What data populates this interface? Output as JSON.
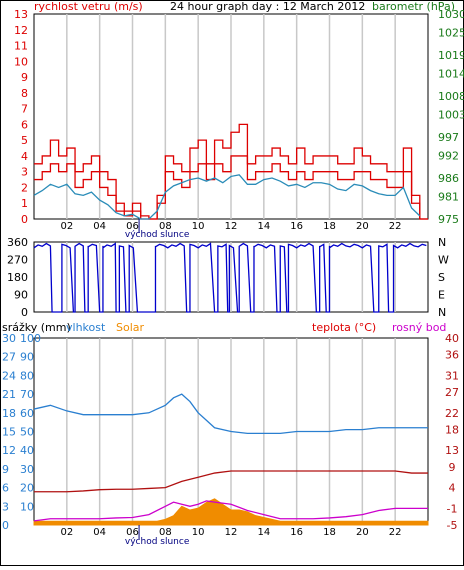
{
  "title": "24 hour graph day : 12 March 2012",
  "colors": {
    "wind": "#dd0000",
    "gust": "#dd0000",
    "windAvg": "#2a8cb8",
    "pressure": "#1a7a1a",
    "direction": "#0000cc",
    "humidity": "#2a7fd0",
    "solar": "#f08c00",
    "temperature": "#b01010",
    "dewpoint": "#cc00cc",
    "sunrise": "#000080",
    "grid": "#c8c8c8"
  },
  "chart_data": [
    {
      "type": "line",
      "left_label": "rychlost vetru (m/s)",
      "right_label": "barometr (hPa)",
      "title": "24 hour graph day : 12 March 2012",
      "xticks": [
        "02",
        "04",
        "06",
        "08",
        "10",
        "12",
        "14",
        "16",
        "18",
        "20",
        "22"
      ],
      "sunrise_label": "východ slunce",
      "yticks_left": [
        "0",
        "1",
        "2",
        "3",
        "4",
        "5",
        "6",
        "7",
        "8",
        "9",
        "10",
        "11",
        "12",
        "13"
      ],
      "yticks_right": [
        "975",
        "981",
        "986",
        "992",
        "997",
        "1003",
        "1008",
        "1014",
        "1019",
        "1025",
        "1030"
      ],
      "ylim_left": [
        0,
        13
      ],
      "ylim_right": [
        975,
        1030
      ],
      "series": [
        {
          "name": "gust",
          "x": [
            0,
            0.5,
            1,
            1.5,
            2,
            2.5,
            3,
            3.5,
            4,
            4.5,
            5,
            5.5,
            6,
            6.5,
            7,
            7.5,
            8,
            8.5,
            9,
            9.5,
            10,
            10.5,
            11,
            11.5,
            12,
            12.5,
            13,
            13.5,
            14,
            14.5,
            15,
            15.5,
            16,
            16.5,
            17,
            17.5,
            18,
            18.5,
            19,
            19.5,
            20,
            20.5,
            21,
            21.5,
            22,
            22.5,
            23,
            23.5
          ],
          "values": [
            3.5,
            4,
            5,
            4,
            4.5,
            3,
            3.5,
            4,
            3,
            2.5,
            1,
            0.5,
            1,
            0.2,
            0,
            1.5,
            4,
            3.5,
            3,
            4.5,
            5,
            3.5,
            5,
            4.5,
            5.5,
            6,
            3.5,
            4,
            4,
            4.5,
            4,
            3.5,
            4.5,
            3.5,
            4,
            4,
            4,
            3.5,
            3.5,
            4.5,
            4,
            3.5,
            3.5,
            3,
            3,
            4.5,
            1.5,
            0
          ]
        },
        {
          "name": "wind",
          "x": [
            0,
            0.5,
            1,
            1.5,
            2,
            2.5,
            3,
            3.5,
            4,
            4.5,
            5,
            5.5,
            6,
            6.5,
            7,
            7.5,
            8,
            8.5,
            9,
            9.5,
            10,
            10.5,
            11,
            11.5,
            12,
            12.5,
            13,
            13.5,
            14,
            14.5,
            15,
            15.5,
            16,
            16.5,
            17,
            17.5,
            18,
            18.5,
            19,
            19.5,
            20,
            20.5,
            21,
            21.5,
            22,
            22.5,
            23,
            23.5
          ],
          "values": [
            2.5,
            3,
            3.5,
            3,
            3.5,
            2,
            2.5,
            3,
            2,
            1.5,
            0.5,
            0.2,
            0.5,
            0,
            0,
            1,
            3,
            2.5,
            2,
            3,
            3.5,
            2.5,
            3.5,
            3,
            4,
            4,
            2.5,
            3,
            3,
            3.5,
            3,
            2.5,
            3,
            2.5,
            3,
            3,
            3,
            2.5,
            2.5,
            3,
            3,
            2.5,
            2.5,
            2,
            2,
            3,
            1,
            0
          ]
        },
        {
          "name": "windAvg",
          "x": [
            0,
            0.5,
            1,
            1.5,
            2,
            2.5,
            3,
            3.5,
            4,
            4.5,
            5,
            5.5,
            6,
            6.5,
            7,
            7.5,
            8,
            8.5,
            9,
            9.5,
            10,
            10.5,
            11,
            11.5,
            12,
            12.5,
            13,
            13.5,
            14,
            14.5,
            15,
            15.5,
            16,
            16.5,
            17,
            17.5,
            18,
            18.5,
            19,
            19.5,
            20,
            20.5,
            21,
            21.5,
            22,
            22.5,
            23,
            23.5
          ],
          "values": [
            1.5,
            1.8,
            2.2,
            2.0,
            2.2,
            1.6,
            1.5,
            1.7,
            1.2,
            0.9,
            0.4,
            0.2,
            0.3,
            0,
            0,
            0.5,
            1.7,
            2.1,
            2.3,
            2.5,
            2.6,
            2.4,
            2.6,
            2.3,
            2.7,
            2.8,
            2.2,
            2.2,
            2.5,
            2.6,
            2.4,
            2.1,
            2.2,
            2.0,
            2.3,
            2.3,
            2.2,
            1.9,
            1.8,
            2.2,
            2.1,
            1.8,
            1.6,
            1.5,
            1.5,
            2.0,
            0.7,
            0.2
          ]
        },
        {
          "name": "pressure",
          "x": [
            0,
            1,
            2,
            3,
            4,
            5,
            6,
            7,
            8,
            8.2,
            9,
            10,
            11,
            12,
            13,
            14,
            15,
            16,
            17,
            18,
            19,
            20,
            21,
            22,
            23,
            24
          ],
          "values": [
            1022,
            1022,
            1022,
            1022,
            1022,
            1022,
            1022,
            1022,
            1021,
            1022,
            1022,
            1022,
            1022,
            1022,
            1022,
            1022,
            1022,
            1022,
            1022,
            1022,
            1023,
            1023,
            1023.5,
            1024,
            1024,
            1024
          ]
        }
      ]
    },
    {
      "type": "line",
      "name": "wind direction",
      "yticks_left": [
        "360",
        "270",
        "180",
        "90",
        "0"
      ],
      "yticks_right": [
        "N",
        "W",
        "S",
        "E",
        "N"
      ],
      "ylim": [
        0,
        360
      ],
      "series": [
        {
          "name": "direction",
          "segments": "mostly north/west (~330-350) with frequent drops to 0"
        }
      ]
    },
    {
      "type": "line",
      "labels_left": [
        "srážky (mm)",
        "vlhkost",
        "Solar"
      ],
      "labels_right": [
        "teplota (°C)",
        "rosný bod"
      ],
      "yticks_rain": [
        "0",
        "3",
        "6",
        "9",
        "12",
        "15",
        "18",
        "21",
        "24",
        "27",
        "30"
      ],
      "yticks_left": [
        "0",
        "10",
        "20",
        "30",
        "40",
        "50",
        "60",
        "70",
        "80",
        "90",
        "100"
      ],
      "yticks_solar": [
        "0",
        "10",
        "20",
        "30",
        "40",
        "50",
        "60",
        "70",
        "80",
        "90",
        "100"
      ],
      "yticks_right": [
        "-5",
        "-1",
        "4",
        "9",
        "13",
        "18",
        "22",
        "27",
        "31",
        "36",
        "40"
      ],
      "xticks": [
        "02",
        "04",
        "06",
        "08",
        "10",
        "12",
        "14",
        "16",
        "18",
        "20",
        "22"
      ],
      "sunrise_label": "východ slunce",
      "series": [
        {
          "name": "humidity",
          "x": [
            0,
            1,
            2,
            3,
            4,
            5,
            6,
            7,
            8,
            8.5,
            9,
            9.5,
            10,
            10.5,
            11,
            12,
            13,
            14,
            15,
            16,
            17,
            18,
            19,
            20,
            21,
            22,
            23,
            24
          ],
          "values": [
            62,
            64,
            61,
            59,
            59,
            59,
            59,
            60,
            64,
            68,
            70,
            66,
            60,
            56,
            52,
            50,
            49,
            49,
            49,
            50,
            50,
            50,
            51,
            51,
            52,
            52,
            52,
            52
          ]
        },
        {
          "name": "temperature",
          "x": [
            0,
            1,
            2,
            3,
            4,
            5,
            6,
            7,
            8,
            9,
            10,
            11,
            12,
            13,
            14,
            15,
            16,
            17,
            18,
            19,
            20,
            21,
            22,
            23,
            24
          ],
          "values": [
            3,
            3,
            3,
            3.2,
            3.5,
            3.6,
            3.6,
            3.8,
            4,
            5.5,
            6.5,
            7.5,
            8,
            8,
            8,
            8,
            8,
            8,
            8,
            8,
            8,
            8,
            8,
            7.5,
            7.5
          ]
        },
        {
          "name": "dewpoint",
          "x": [
            0,
            1,
            2,
            3,
            4,
            5,
            6,
            7,
            8,
            8.5,
            9,
            9.5,
            10,
            10.5,
            11,
            12,
            13,
            14,
            15,
            16,
            17,
            18,
            19,
            20,
            21,
            22,
            23,
            24
          ],
          "values": [
            -4,
            -3.5,
            -3.5,
            -3.5,
            -3.5,
            -3.3,
            -3.2,
            -2.5,
            -0.5,
            0.5,
            0,
            -0.5,
            0,
            0.8,
            0.5,
            0,
            -1.5,
            -2.5,
            -3.5,
            -3.5,
            -3.5,
            -3.3,
            -3,
            -2.5,
            -1.5,
            -1,
            -1,
            -1
          ]
        },
        {
          "name": "solar",
          "x": [
            0,
            7.5,
            8,
            8.5,
            9,
            9.5,
            10,
            10.5,
            11,
            11.5,
            12,
            12.5,
            13,
            13.5,
            14,
            14.5,
            15,
            15.5,
            16,
            24
          ],
          "values": [
            2,
            2,
            3,
            5,
            10,
            8,
            9,
            12,
            14,
            11,
            8,
            8,
            7,
            5,
            4,
            3,
            2,
            2,
            2,
            2
          ]
        }
      ]
    }
  ]
}
